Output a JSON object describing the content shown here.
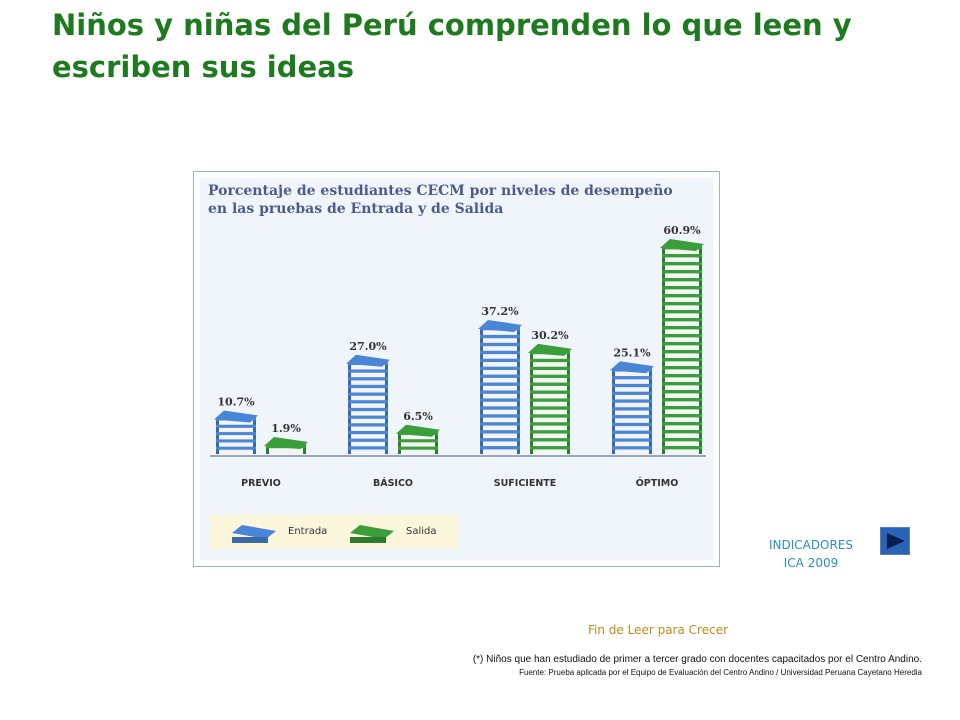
{
  "slide": {
    "title": "Niños y niñas del Perú comprenden lo que leen y escriben sus ideas"
  },
  "chart_data": {
    "type": "bar",
    "title": "Porcentaje de estudiantes CECM por niveles de desempeño en las pruebas de Entrada y de Salida",
    "title_line1": "Porcentaje de estudiantes CECM por niveles de desempeño",
    "title_line2": "en las pruebas de Entrada y de Salida",
    "categories": [
      "PREVIO",
      "BÁSICO",
      "SUFICIENTE",
      "ÓPTIMO"
    ],
    "series": [
      {
        "name": "Entrada",
        "values": [
          10.7,
          27.0,
          37.2,
          25.1
        ],
        "labels": [
          "10.7%",
          "27.0%",
          "37.2%",
          "25.1%"
        ],
        "color": "#4a86d8"
      },
      {
        "name": "Salida",
        "values": [
          1.9,
          6.5,
          30.2,
          60.9
        ],
        "labels": [
          "1.9%",
          "6.5%",
          "30.2%",
          "60.9%"
        ],
        "color": "#3a9e3a"
      }
    ],
    "legend_placement": "bottom-left",
    "grid": false,
    "ylim": [
      0,
      65
    ]
  },
  "navigation": {
    "label_line1": "INDICADORES",
    "label_line2": "ICA 2009",
    "button_icon": "play-arrow-icon"
  },
  "footer": {
    "end_note": "Fin de Leer para Crecer",
    "footnote": "(*) Niños que han estudiado de primer a tercer grado con docentes capacitados por el Centro Andino.",
    "source": "Fuente: Prueba aplicada por el Equipo de Evaluación del Centro Andino / Universidad Peruana Cayetano Heredia"
  },
  "colors": {
    "title_green": "#1e7a1e",
    "chart_title": "#4d5a8a",
    "entrada_blue": "#4a86d8",
    "salida_green": "#3a9e3a",
    "nav_text": "#2a8fc4",
    "end_note": "#c48a18"
  }
}
